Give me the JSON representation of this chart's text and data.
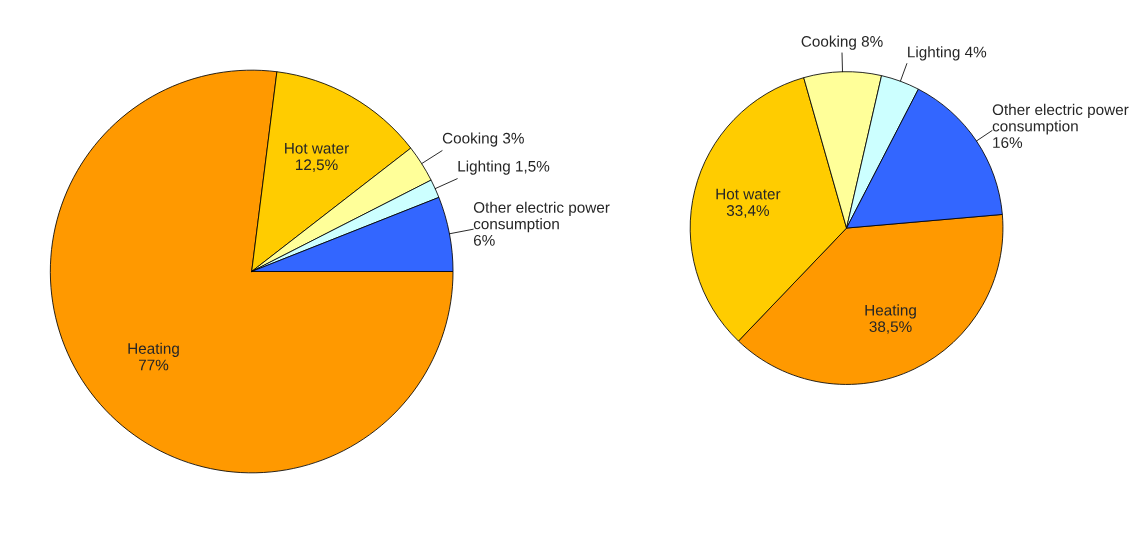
{
  "chart_data": [
    {
      "type": "pie",
      "categories": [
        "Heating",
        "Hot water",
        "Cooking",
        "Lighting",
        "Other electric power consumption"
      ],
      "values": [
        77,
        12.5,
        3,
        1.5,
        6
      ],
      "value_labels": [
        "77%",
        "12,5%",
        "3%",
        "1,5%",
        "6%"
      ],
      "colors": [
        "#ff9900",
        "#ffcc00",
        "#ffff99",
        "#ccffff",
        "#3366ff"
      ]
    },
    {
      "type": "pie",
      "categories": [
        "Heating",
        "Hot water",
        "Cooking",
        "Lighting",
        "Other electric power consumption"
      ],
      "values": [
        38.5,
        33.4,
        8,
        4,
        16
      ],
      "value_labels": [
        "38,5%",
        "33,4%",
        "8%",
        "4%",
        "16%"
      ],
      "colors": [
        "#ff9900",
        "#ffcc00",
        "#ffff99",
        "#ccffff",
        "#3366ff"
      ]
    }
  ]
}
